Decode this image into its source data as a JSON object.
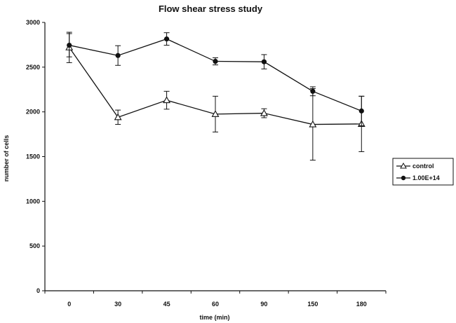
{
  "chart_data": {
    "type": "line",
    "title": "Flow shear stress study",
    "xlabel": "time (min)",
    "ylabel": "number of cells",
    "categories": [
      "0",
      "30",
      "45",
      "60",
      "90",
      "150",
      "180"
    ],
    "ylim": [
      0,
      3000
    ],
    "yticks": [
      0,
      500,
      1000,
      1500,
      2000,
      2500,
      3000
    ],
    "grid": false,
    "legend_position": "right",
    "series": [
      {
        "name": "control",
        "marker": "open-triangle",
        "values": [
          2720,
          1940,
          2130,
          1975,
          1985,
          1860,
          1865
        ],
        "error": [
          170,
          80,
          100,
          200,
          50,
          400,
          310
        ],
        "color": "#111111"
      },
      {
        "name": "1.00E+14",
        "marker": "filled-circle",
        "values": [
          2745,
          2630,
          2815,
          2565,
          2560,
          2230,
          2010
        ],
        "error": [
          130,
          110,
          70,
          40,
          80,
          50,
          165
        ],
        "color": "#111111"
      }
    ]
  }
}
